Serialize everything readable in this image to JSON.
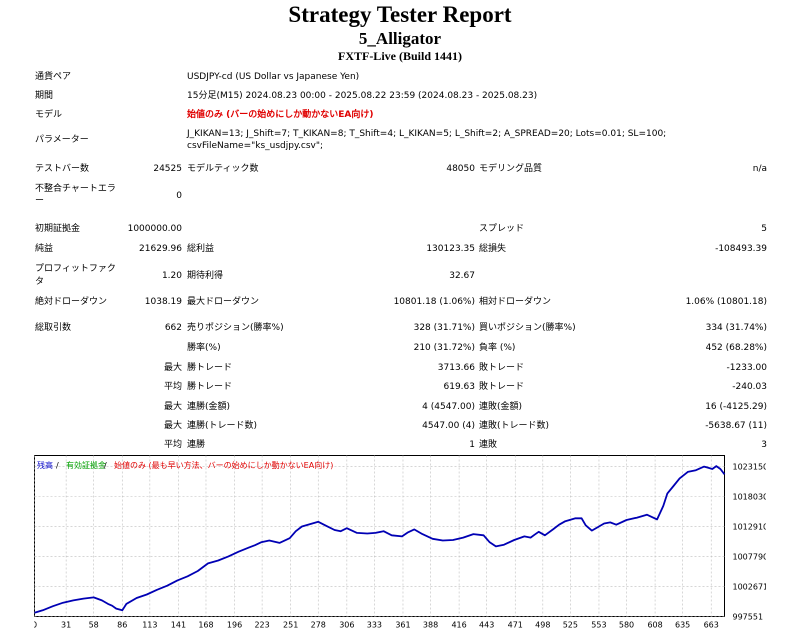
{
  "header": {
    "title": "Strategy Tester Report",
    "ea_name": "5_Alligator",
    "server": "FXTF-Live (Build 1441)"
  },
  "settings": {
    "symbol_label": "通貨ペア",
    "symbol_value": "USDJPY-cd (US Dollar vs Japanese Yen)",
    "period_label": "期間",
    "period_value": "15分足(M15) 2024.08.23 00:00 - 2025.08.22 23:59 (2024.08.23 - 2025.08.23)",
    "model_label": "モデル",
    "model_value": "始値のみ (バーの始めにしか動かないEA向け)",
    "params_label": "パラメーター",
    "params_line1": "J_KIKAN=13; J_Shift=7; T_KIKAN=8; T_Shift=4; L_KIKAN=5; L_Shift=2; A_SPREAD=20; Lots=0.01; SL=100;",
    "params_line2": "csvFileName=\"ks_usdjpy.csv\";"
  },
  "stats": {
    "bars_label": "テストバー数",
    "bars_value": "24525",
    "ticks_label": "モデルティック数",
    "ticks_value": "48050",
    "quality_label": "モデリング品質",
    "quality_value": "n/a",
    "mismatch_label1": "不整合チャートエラ",
    "mismatch_label2": "ー",
    "mismatch_value": "0",
    "deposit_label": "初期証拠金",
    "deposit_value": "1000000.00",
    "spread_label": "スプレッド",
    "spread_value": "5",
    "net_label": "純益",
    "net_value": "21629.96",
    "gross_profit_label": "総利益",
    "gross_profit_value": "130123.35",
    "gross_loss_label": "総損失",
    "gross_loss_value": "-108493.39",
    "pf_label1": "プロフィットファク",
    "pf_label2": "タ",
    "pf_value": "1.20",
    "expected_label": "期待利得",
    "expected_value": "32.67",
    "abs_dd_label": "絶対ドローダウン",
    "abs_dd_value": "1038.19",
    "max_dd_label": "最大ドローダウン",
    "max_dd_value": "10801.18 (1.06%)",
    "rel_dd_label": "相対ドローダウン",
    "rel_dd_value": "1.06% (10801.18)",
    "trades_label": "総取引数",
    "trades_value": "662",
    "short_label": "売りポジション(勝率%)",
    "short_value": "328 (31.71%)",
    "long_label": "買いポジション(勝率%)",
    "long_value": "334 (31.74%)",
    "winrate_label": "勝率(%)",
    "winrate_value": "210 (31.72%)",
    "lossrate_label": "負率 (%)",
    "lossrate_value": "452 (68.28%)",
    "max_word": "最大",
    "avg_word": "平均",
    "largest_win_label": "勝トレード",
    "largest_win_value": "3713.66",
    "largest_loss_label": "敗トレード",
    "largest_loss_value": "-1233.00",
    "avg_win_label": "勝トレード",
    "avg_win_value": "619.63",
    "avg_loss_label": "敗トレード",
    "avg_loss_value": "-240.03",
    "max_consec_win_label": "連勝(金額)",
    "max_consec_win_value": "4 (4547.00)",
    "max_consec_loss_label": "連敗(金額)",
    "max_consec_loss_value": "16 (-4125.29)",
    "max_consec_profit_label": "連勝(トレード数)",
    "max_consec_profit_value": "4547.00 (4)",
    "max_consec_lossamt_label": "連敗(トレード数)",
    "max_consec_lossamt_value": "-5638.67 (11)",
    "avg_consec_win_label": "連勝",
    "avg_consec_win_value": "1",
    "avg_consec_loss_label": "連敗",
    "avg_consec_loss_value": "3"
  },
  "chart_data": {
    "type": "line",
    "legend": {
      "balance": "残高",
      "sep1": " / ",
      "margin": "有効証拠金",
      "sep2": " / ",
      "note": "始値のみ (最も早い方法、バーの始めにしか動かないEA向け)"
    },
    "x_ticks": [
      "0",
      "31",
      "58",
      "86",
      "113",
      "141",
      "168",
      "196",
      "223",
      "251",
      "278",
      "306",
      "333",
      "361",
      "388",
      "416",
      "443",
      "471",
      "498",
      "525",
      "553",
      "580",
      "608",
      "635",
      "663"
    ],
    "y_ticks": [
      "1023150",
      "1018030",
      "1012910",
      "1007790",
      "1002671",
      "997551"
    ],
    "ylim": [
      997551,
      1025000
    ],
    "xlim": [
      0,
      676
    ],
    "colors": {
      "balance": "#0000b4",
      "grid": "#bdbdbd",
      "legend_balance": "#0000c8",
      "legend_margin": "#00a000",
      "legend_note": "#e00000"
    },
    "series": [
      {
        "name": "残高",
        "x": [
          0,
          8,
          18,
          28,
          38,
          48,
          58,
          66,
          72,
          76,
          80,
          86,
          90,
          100,
          110,
          120,
          130,
          140,
          150,
          160,
          170,
          180,
          190,
          200,
          210,
          216,
          222,
          230,
          240,
          250,
          256,
          262,
          270,
          278,
          286,
          294,
          300,
          306,
          316,
          326,
          334,
          342,
          350,
          360,
          366,
          372,
          380,
          390,
          400,
          410,
          420,
          430,
          440,
          446,
          452,
          460,
          470,
          480,
          486,
          490,
          494,
          500,
          508,
          514,
          520,
          530,
          536,
          540,
          546,
          552,
          558,
          564,
          570,
          580,
          590,
          600,
          610,
          616,
          620,
          626,
          632,
          640,
          648,
          656,
          660,
          664,
          668,
          672,
          676
        ],
        "y": [
          998200,
          998600,
          999300,
          999900,
          1000300,
          1000600,
          1000800,
          1000300,
          999700,
          999400,
          998900,
          998600,
          999700,
          1000700,
          1001300,
          1002100,
          1002800,
          1003700,
          1004400,
          1005300,
          1006600,
          1007100,
          1007800,
          1008600,
          1009300,
          1009700,
          1010200,
          1010500,
          1010100,
          1010900,
          1012100,
          1012900,
          1013300,
          1013700,
          1013000,
          1012300,
          1012100,
          1012600,
          1011800,
          1011700,
          1011800,
          1012100,
          1011400,
          1011200,
          1011900,
          1012400,
          1011600,
          1010800,
          1010500,
          1010600,
          1011000,
          1011600,
          1011400,
          1010200,
          1009500,
          1009800,
          1010600,
          1011200,
          1011000,
          1011500,
          1012000,
          1011400,
          1012400,
          1013200,
          1013800,
          1014300,
          1014300,
          1013100,
          1012200,
          1012800,
          1013400,
          1013600,
          1013200,
          1014000,
          1014400,
          1014900,
          1014100,
          1016400,
          1018500,
          1019800,
          1021100,
          1022200,
          1022500,
          1023100,
          1022900,
          1022700,
          1023200,
          1022700,
          1021800
        ]
      }
    ]
  }
}
